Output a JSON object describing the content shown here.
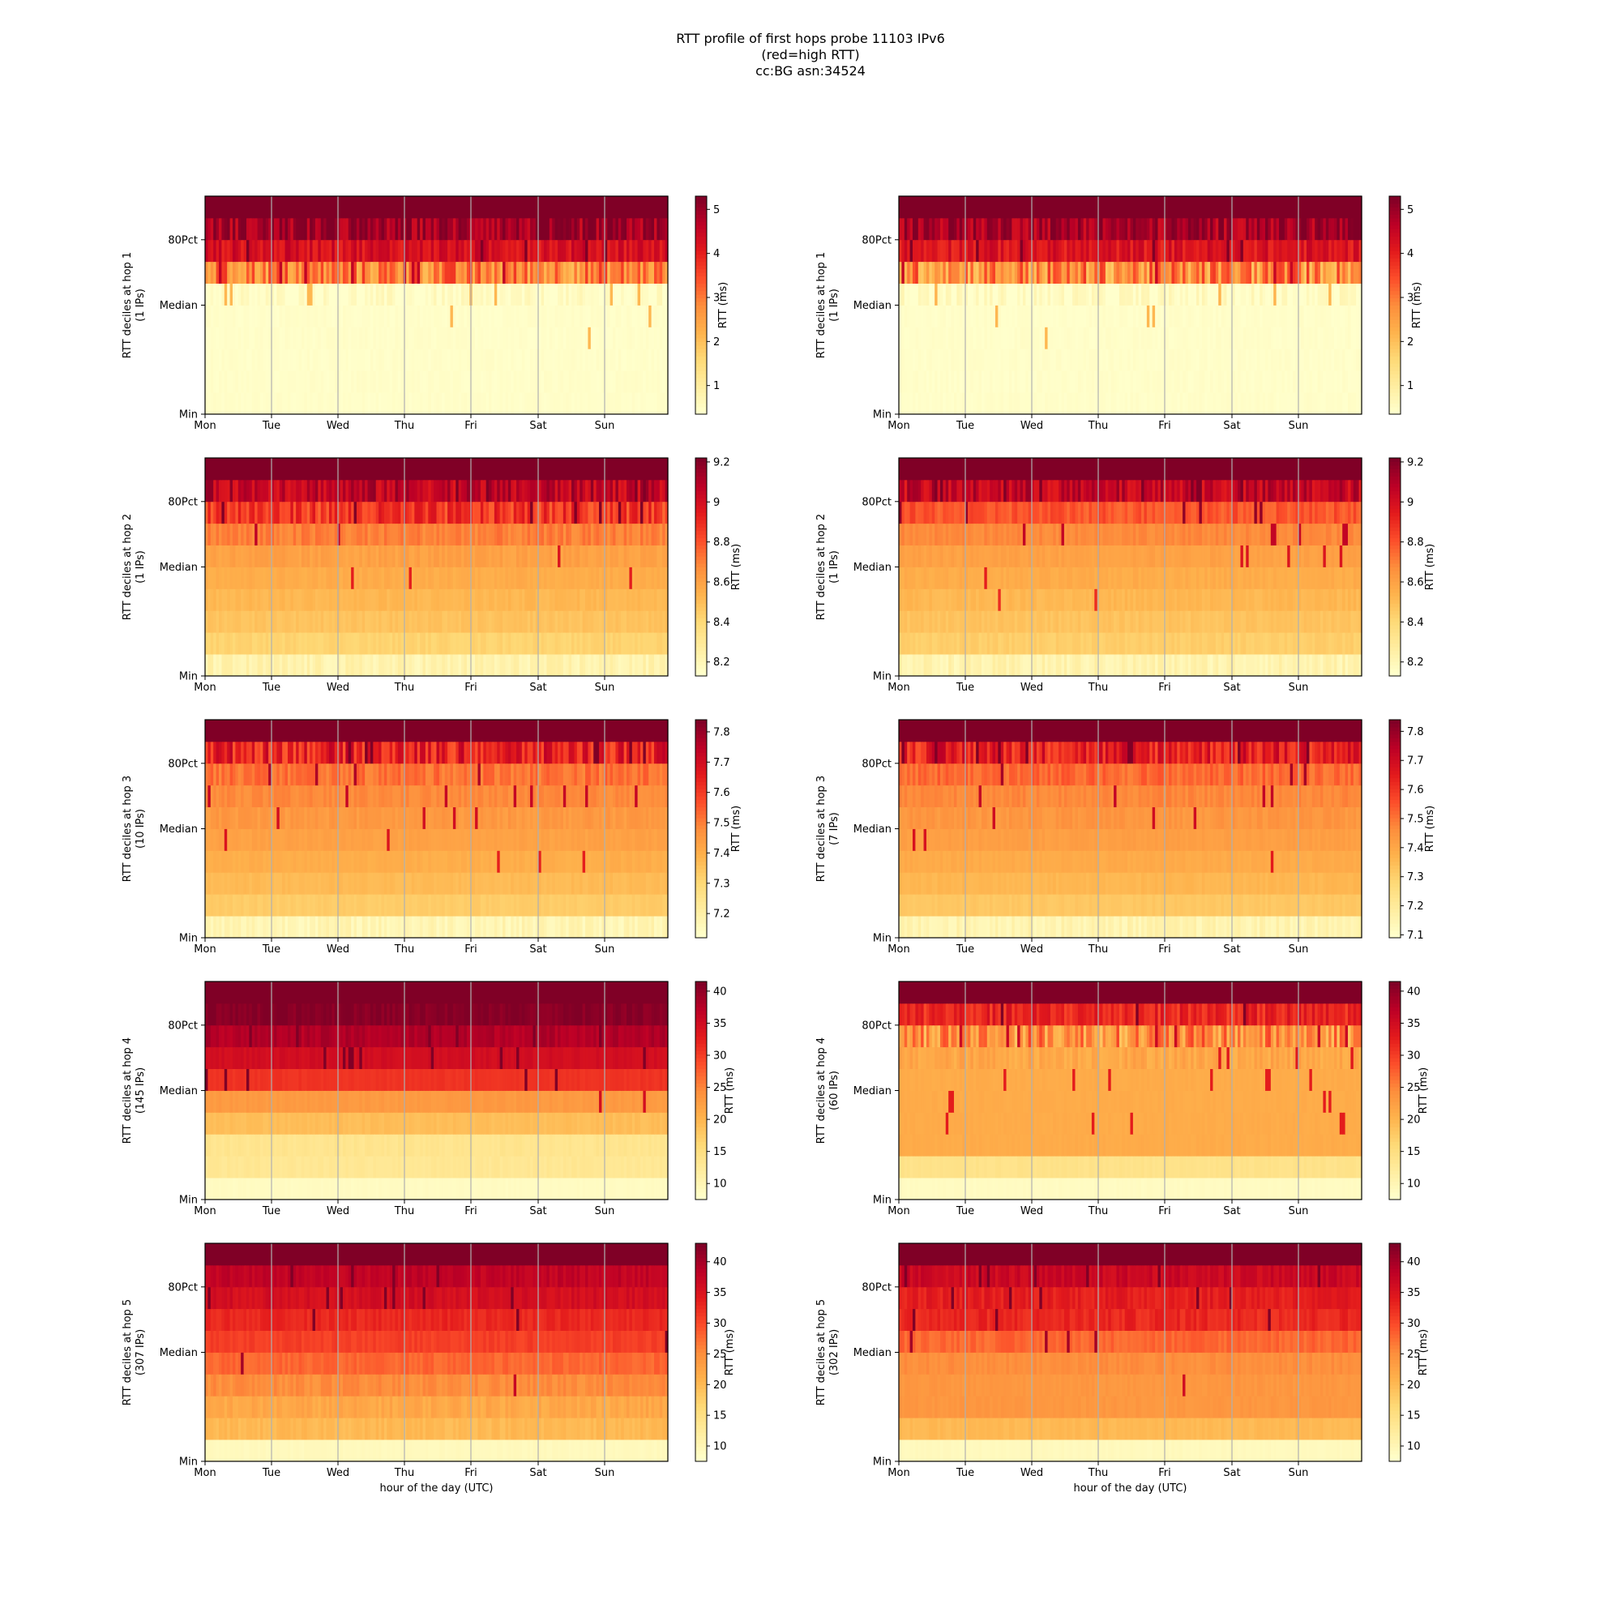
{
  "figure": {
    "title_lines": [
      "RTT profile of first hops probe 11103 IPv6",
      "(red=high RTT)",
      "cc:BG asn:34524"
    ],
    "xlabel": "hour of the day (UTC)",
    "colormap": [
      "#ffffcc",
      "#ffeda0",
      "#fed976",
      "#feb24c",
      "#fd8d3c",
      "#fc4e2a",
      "#e31a1c",
      "#bd0026",
      "#800026"
    ],
    "grid": "vertical lines at day boundaries",
    "colorbar_label": "RTT (ms)"
  },
  "chart_data": [
    {
      "type": "heatmap",
      "ylabel": "RTT deciles at hop 1",
      "ylabel2": "(1 IPs)",
      "x_ticks": [
        "Mon",
        "Tue",
        "Wed",
        "Thu",
        "Fri",
        "Sat",
        "Sun"
      ],
      "y_ticks": [
        "Min",
        "Median",
        "80Pct"
      ],
      "cbar_min": 0.35,
      "cbar_max": 5.3,
      "cbar_ticks": [
        1,
        2,
        3,
        4,
        5
      ],
      "decile_levels": [
        0.4,
        0.4,
        0.4,
        0.4,
        0.4,
        0.4,
        2.9,
        4.3,
        4.9,
        5.3
      ],
      "noise": [
        0.05,
        0.05,
        0.05,
        0.05,
        0.05,
        0.3,
        0.9,
        0.4,
        0.6,
        0
      ]
    },
    {
      "type": "heatmap",
      "ylabel": "RTT deciles at hop 1",
      "ylabel2": "(1 IPs)",
      "x_ticks": [
        "Mon",
        "Tue",
        "Wed",
        "Thu",
        "Fri",
        "Sat",
        "Sun"
      ],
      "y_ticks": [
        "Min",
        "Median",
        "80Pct"
      ],
      "cbar_min": 0.35,
      "cbar_max": 5.3,
      "cbar_ticks": [
        1,
        2,
        3,
        4,
        5
      ],
      "decile_levels": [
        0.4,
        0.4,
        0.4,
        0.4,
        0.4,
        0.45,
        2.8,
        4.2,
        4.9,
        5.3
      ],
      "noise": [
        0.05,
        0.05,
        0.05,
        0.05,
        0.05,
        0.3,
        1.0,
        0.4,
        0.6,
        0
      ]
    },
    {
      "type": "heatmap",
      "ylabel": "RTT deciles at hop 2",
      "ylabel2": "(1 IPs)",
      "x_ticks": [
        "Mon",
        "Tue",
        "Wed",
        "Thu",
        "Fri",
        "Sat",
        "Sun"
      ],
      "y_ticks": [
        "Min",
        "Median",
        "80Pct"
      ],
      "cbar_min": 8.13,
      "cbar_max": 9.22,
      "cbar_ticks": [
        8.2,
        8.4,
        8.6,
        8.8,
        9.0,
        9.2
      ],
      "decile_levels": [
        8.22,
        8.42,
        8.48,
        8.52,
        8.56,
        8.6,
        8.7,
        8.87,
        9.07,
        9.3
      ],
      "noise": [
        0.05,
        0.02,
        0.02,
        0.02,
        0.02,
        0.03,
        0.05,
        0.12,
        0.12,
        0
      ]
    },
    {
      "type": "heatmap",
      "ylabel": "RTT deciles at hop 2",
      "ylabel2": "(1 IPs)",
      "x_ticks": [
        "Mon",
        "Tue",
        "Wed",
        "Thu",
        "Fri",
        "Sat",
        "Sun"
      ],
      "y_ticks": [
        "Min",
        "Median",
        "80Pct"
      ],
      "cbar_min": 8.13,
      "cbar_max": 9.22,
      "cbar_ticks": [
        8.2,
        8.4,
        8.6,
        8.8,
        9.0,
        9.2
      ],
      "decile_levels": [
        8.22,
        8.44,
        8.48,
        8.52,
        8.56,
        8.6,
        8.68,
        8.8,
        9.05,
        9.3
      ],
      "noise": [
        0.05,
        0.02,
        0.02,
        0.02,
        0.02,
        0.02,
        0.03,
        0.06,
        0.12,
        0
      ]
    },
    {
      "type": "heatmap",
      "ylabel": "RTT deciles at hop 3",
      "ylabel2": "(10 IPs)",
      "x_ticks": [
        "Mon",
        "Tue",
        "Wed",
        "Thu",
        "Fri",
        "Sat",
        "Sun"
      ],
      "y_ticks": [
        "Min",
        "Median",
        "80Pct"
      ],
      "cbar_min": 7.12,
      "cbar_max": 7.84,
      "cbar_ticks": [
        7.2,
        7.3,
        7.4,
        7.5,
        7.6,
        7.7,
        7.8
      ],
      "decile_levels": [
        7.17,
        7.33,
        7.37,
        7.4,
        7.43,
        7.45,
        7.48,
        7.52,
        7.65,
        7.9
      ],
      "noise": [
        0.03,
        0.01,
        0.01,
        0.01,
        0.01,
        0.02,
        0.02,
        0.04,
        0.1,
        0
      ]
    },
    {
      "type": "heatmap",
      "ylabel": "RTT deciles at hop 3",
      "ylabel2": "(7 IPs)",
      "x_ticks": [
        "Mon",
        "Tue",
        "Wed",
        "Thu",
        "Fri",
        "Sat",
        "Sun"
      ],
      "y_ticks": [
        "Min",
        "Median",
        "80Pct"
      ],
      "cbar_min": 7.09,
      "cbar_max": 7.84,
      "cbar_ticks": [
        7.1,
        7.2,
        7.3,
        7.4,
        7.5,
        7.6,
        7.7,
        7.8
      ],
      "decile_levels": [
        7.15,
        7.32,
        7.36,
        7.39,
        7.42,
        7.44,
        7.47,
        7.52,
        7.65,
        7.9
      ],
      "noise": [
        0.03,
        0.01,
        0.01,
        0.01,
        0.01,
        0.02,
        0.02,
        0.04,
        0.1,
        0
      ]
    },
    {
      "type": "heatmap",
      "ylabel": "RTT deciles at hop 4",
      "ylabel2": "(145 IPs)",
      "x_ticks": [
        "Mon",
        "Tue",
        "Wed",
        "Thu",
        "Fri",
        "Sat",
        "Sun"
      ],
      "y_ticks": [
        "Min",
        "Median",
        "80Pct"
      ],
      "cbar_min": 7.5,
      "cbar_max": 41.5,
      "cbar_ticks": [
        10,
        15,
        20,
        25,
        30,
        35,
        40
      ],
      "decile_levels": [
        8.5,
        13,
        13.5,
        19,
        23,
        31,
        35,
        38,
        41,
        44
      ],
      "noise": [
        0.2,
        0.5,
        0.5,
        0.5,
        0.5,
        0.4,
        0.6,
        1.2,
        1.0,
        0
      ]
    },
    {
      "type": "heatmap",
      "ylabel": "RTT deciles at hop 4",
      "ylabel2": "(60 IPs)",
      "x_ticks": [
        "Mon",
        "Tue",
        "Wed",
        "Thu",
        "Fri",
        "Sat",
        "Sun"
      ],
      "y_ticks": [
        "Min",
        "Median",
        "80Pct"
      ],
      "cbar_min": 7.5,
      "cbar_max": 41.5,
      "cbar_ticks": [
        10,
        15,
        20,
        25,
        30,
        35,
        40
      ],
      "decile_levels": [
        8.5,
        14,
        21,
        21,
        21,
        21,
        21.5,
        24,
        32,
        44
      ],
      "noise": [
        0.2,
        0.4,
        0.3,
        0.3,
        0.3,
        0.3,
        1.5,
        6,
        3,
        0
      ]
    },
    {
      "type": "heatmap",
      "ylabel": "RTT deciles at hop 5",
      "ylabel2": "(307 IPs)",
      "x_ticks": [
        "Mon",
        "Tue",
        "Wed",
        "Thu",
        "Fri",
        "Sat",
        "Sun"
      ],
      "y_ticks": [
        "Min",
        "Median",
        "80Pct"
      ],
      "cbar_min": 7.5,
      "cbar_max": 43,
      "cbar_ticks": [
        10,
        15,
        20,
        25,
        30,
        35,
        40
      ],
      "decile_levels": [
        9,
        20,
        22,
        25,
        28,
        31,
        33,
        36,
        38,
        46
      ],
      "noise": [
        0.3,
        0.8,
        1.2,
        1.2,
        1.0,
        0.8,
        1.0,
        1.2,
        1.2,
        0
      ]
    },
    {
      "type": "heatmap",
      "ylabel": "RTT deciles at hop 5",
      "ylabel2": "(302 IPs)",
      "x_ticks": [
        "Mon",
        "Tue",
        "Wed",
        "Thu",
        "Fri",
        "Sat",
        "Sun"
      ],
      "y_ticks": [
        "Min",
        "Median",
        "80Pct"
      ],
      "cbar_min": 7.5,
      "cbar_max": 43,
      "cbar_ticks": [
        10,
        15,
        20,
        25,
        30,
        35,
        40
      ],
      "decile_levels": [
        9,
        20,
        24,
        24,
        25,
        28,
        33,
        34,
        37,
        46
      ],
      "noise": [
        0.3,
        0.5,
        0.5,
        0.5,
        0.8,
        1.2,
        1.5,
        1.5,
        1.5,
        0
      ]
    }
  ]
}
